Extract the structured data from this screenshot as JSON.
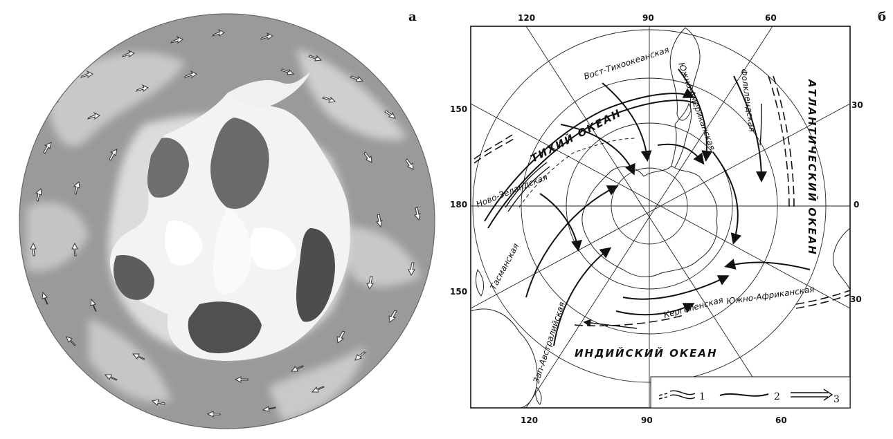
{
  "panels": {
    "a": {
      "letter": "а"
    },
    "b": {
      "letter": "б"
    }
  },
  "map_b": {
    "top_longitudes": [
      "120",
      "90",
      "60"
    ],
    "bottom_longitudes": [
      "120",
      "90",
      "60"
    ],
    "left_longitudes": [
      "150",
      "180",
      "150"
    ],
    "right_longitudes": [
      "30",
      "0",
      "30"
    ],
    "oceans": {
      "pacific": "ТИХИЙ ОКЕАН",
      "atlantic": "АТЛАНТИЧЕСКИЙ ОКЕАН",
      "indian": "ИНДИЙСКИЙ ОКЕАН"
    },
    "currents": {
      "east_pacific": "Вост-Тихоокеанская",
      "south_american": "Южно-Американская",
      "falkland": "Фолклендская",
      "new_zealand": "Ново-Зеландская",
      "tasmanian": "Тасманская",
      "west_australian": "Зап-Австралийская",
      "kerguelen": "Кергеленская",
      "south_african": "Южно-Африканская"
    },
    "legend": [
      "1",
      "2",
      "3"
    ]
  }
}
